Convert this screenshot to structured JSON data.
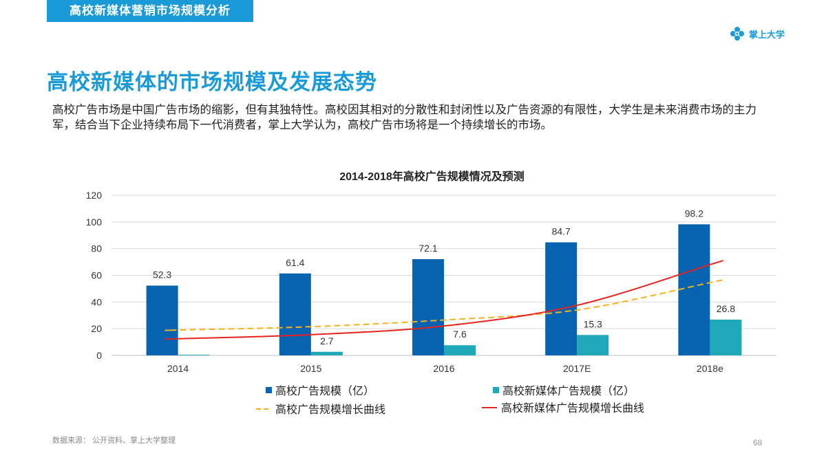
{
  "header": {
    "section_tab": "高校新媒体营销市场规模分析",
    "brand_name": "掌上大学",
    "brand_icon": "flower-logo-icon",
    "accent_color": "#1a9ad6"
  },
  "page": {
    "title": "高校新媒体的市场规模及发展态势",
    "intro": "高校广告市场是中国广告市场的缩影，但有其独特性。高校因其相对的分散性和封闭性以及广告资源的有限性，大学生是未来消费市场的主力军，结合当下企业持续布局下一代消费者，掌上大学认为，高校广告市场将是一个持续增长的市场。",
    "source": "数据来源： 公开资料、掌上大学整理",
    "page_number": "68"
  },
  "chart_data": {
    "type": "bar",
    "title": "2014-2018年高校广告规模情况及预测",
    "categories": [
      "2014",
      "2015",
      "2016",
      "2017E",
      "2018e"
    ],
    "ylim": [
      0,
      120
    ],
    "yticks": [
      0,
      20,
      40,
      60,
      80,
      100,
      120
    ],
    "grid": true,
    "legend_placement": "bottom",
    "series": [
      {
        "name": "高校广告规模（亿）",
        "type": "bar",
        "color": "#0563b0",
        "values": [
          52.3,
          61.4,
          72.1,
          84.7,
          98.2
        ],
        "labels": [
          "52.3",
          "61.4",
          "72.1",
          "84.7",
          "98.2"
        ]
      },
      {
        "name": "高校新媒体广告规模（亿）",
        "type": "bar",
        "color": "#1ea8b8",
        "values": [
          0.5,
          2.7,
          7.6,
          15.3,
          26.8
        ],
        "labels": [
          "",
          "2.7",
          "7.6",
          "15.3",
          "26.8"
        ]
      },
      {
        "name": "高校广告规模增长曲线",
        "type": "line",
        "style": "dashed",
        "color": "#f5b21b",
        "values": [
          19,
          21.5,
          26.5,
          34,
          54.5
        ]
      },
      {
        "name": "高校新媒体广告规模增长曲线",
        "type": "line",
        "style": "solid",
        "color": "#e8221e",
        "values": [
          12.5,
          15.5,
          22,
          37.5,
          68
        ]
      }
    ]
  }
}
